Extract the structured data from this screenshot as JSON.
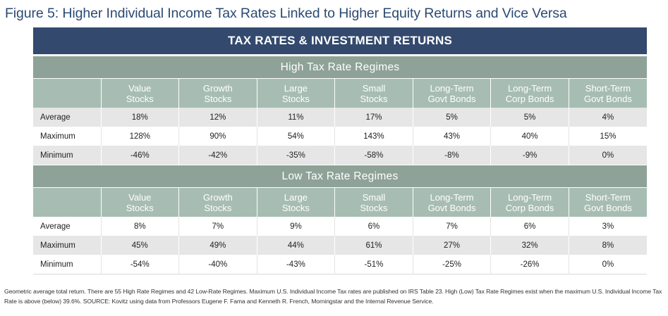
{
  "figure_title": "Figure 5: Higher Individual Income Tax Rates Linked to Higher Equity Returns and Vice Versa",
  "banner": "TAX RATES & INVESTMENT RETURNS",
  "columns": [
    [
      "Value",
      "Stocks"
    ],
    [
      "Growth",
      "Stocks"
    ],
    [
      "Large",
      "Stocks"
    ],
    [
      "Small",
      "Stocks"
    ],
    [
      "Long-Term",
      "Govt Bonds"
    ],
    [
      "Long-Term",
      "Corp Bonds"
    ],
    [
      "Short-Term",
      "Govt Bonds"
    ]
  ],
  "high": {
    "title": "High Tax Rate Regimes",
    "rows": [
      {
        "label": "Average",
        "values": [
          "18%",
          "12%",
          "11%",
          "17%",
          "5%",
          "5%",
          "4%"
        ]
      },
      {
        "label": "Maximum",
        "values": [
          "128%",
          "90%",
          "54%",
          "143%",
          "43%",
          "40%",
          "15%"
        ]
      },
      {
        "label": "Minimum",
        "values": [
          "-46%",
          "-42%",
          "-35%",
          "-58%",
          "-8%",
          "-9%",
          "0%"
        ]
      }
    ]
  },
  "low": {
    "title": "Low Tax Rate Regimes",
    "rows": [
      {
        "label": "Average",
        "values": [
          "8%",
          "7%",
          "9%",
          "6%",
          "7%",
          "6%",
          "3%"
        ]
      },
      {
        "label": "Maximum",
        "values": [
          "45%",
          "49%",
          "44%",
          "61%",
          "27%",
          "32%",
          "8%"
        ]
      },
      {
        "label": "Minimum",
        "values": [
          "-54%",
          "-40%",
          "-43%",
          "-51%",
          "-25%",
          "-26%",
          "0%"
        ]
      }
    ]
  },
  "footnote": "Geometric average total return. There are 55 High Rate Regimes and 42 Low-Rate Regimes. Maximum U.S. Individual Income Tax rates are published on IRS Table 23. High (Low) Tax Rate Regimes exist when the maximum U.S. Individual Income Tax Rate is above (below) 39.6%. SOURCE: Kovitz using data from Professors Eugene F. Fama and Kenneth R. French, Morningstar and the Internal Revenue Service."
}
